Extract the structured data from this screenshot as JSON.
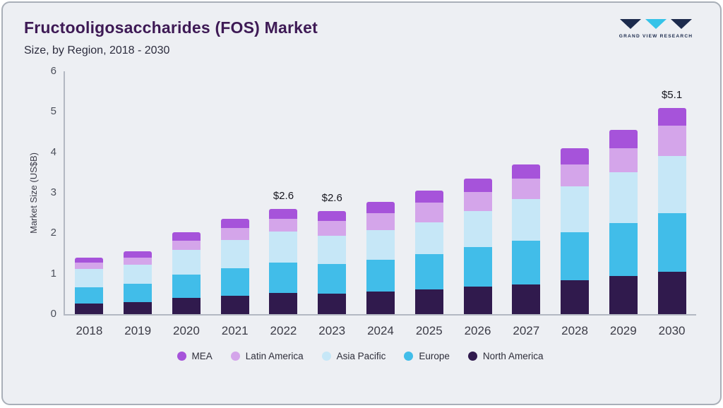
{
  "header": {
    "title": "Fructooligosaccharides (FOS) Market",
    "subtitle": "Size, by Region, 2018 - 2030",
    "logo_text": "GRAND VIEW RESEARCH"
  },
  "colors": {
    "background": "#edeff3",
    "title": "#3e1a55",
    "logo_navy": "#1c2b4d",
    "logo_cyan": "#35c3e8"
  },
  "chart_data": {
    "type": "bar",
    "stacked": true,
    "title": "Fructooligosaccharides (FOS) Market Size, by Region, 2018 - 2030",
    "xlabel": "",
    "ylabel": "Market Size (US$B)",
    "ylim": [
      0,
      6
    ],
    "yticks": [
      0,
      1,
      2,
      3,
      4,
      5,
      6
    ],
    "grid": false,
    "legend_position": "bottom",
    "categories": [
      "2018",
      "2019",
      "2020",
      "2021",
      "2022",
      "2023",
      "2024",
      "2025",
      "2026",
      "2027",
      "2028",
      "2029",
      "2030"
    ],
    "series": [
      {
        "name": "North America",
        "color": "#301a4d",
        "values": [
          0.27,
          0.3,
          0.4,
          0.46,
          0.52,
          0.5,
          0.55,
          0.61,
          0.68,
          0.74,
          0.83,
          0.95,
          1.05
        ]
      },
      {
        "name": "Europe",
        "color": "#41bde9",
        "values": [
          0.4,
          0.45,
          0.58,
          0.68,
          0.76,
          0.74,
          0.8,
          0.88,
          0.97,
          1.08,
          1.2,
          1.3,
          1.45
        ]
      },
      {
        "name": "Asia Pacific",
        "color": "#c6e7f7",
        "values": [
          0.45,
          0.48,
          0.6,
          0.7,
          0.76,
          0.7,
          0.73,
          0.78,
          0.9,
          1.02,
          1.12,
          1.25,
          1.4
        ]
      },
      {
        "name": "Latin America",
        "color": "#d4a5ea",
        "values": [
          0.15,
          0.17,
          0.24,
          0.28,
          0.31,
          0.36,
          0.42,
          0.48,
          0.47,
          0.51,
          0.55,
          0.6,
          0.75
        ]
      },
      {
        "name": "MEA",
        "color": "#a653da",
        "values": [
          0.13,
          0.15,
          0.2,
          0.23,
          0.25,
          0.25,
          0.28,
          0.3,
          0.33,
          0.35,
          0.4,
          0.45,
          0.45
        ]
      }
    ],
    "annotations": [
      {
        "category": "2022",
        "label": "$2.6"
      },
      {
        "category": "2023",
        "label": "$2.6"
      },
      {
        "category": "2030",
        "label": "$5.1"
      }
    ],
    "legend": [
      "MEA",
      "Latin America",
      "Asia Pacific",
      "Europe",
      "North America"
    ]
  }
}
